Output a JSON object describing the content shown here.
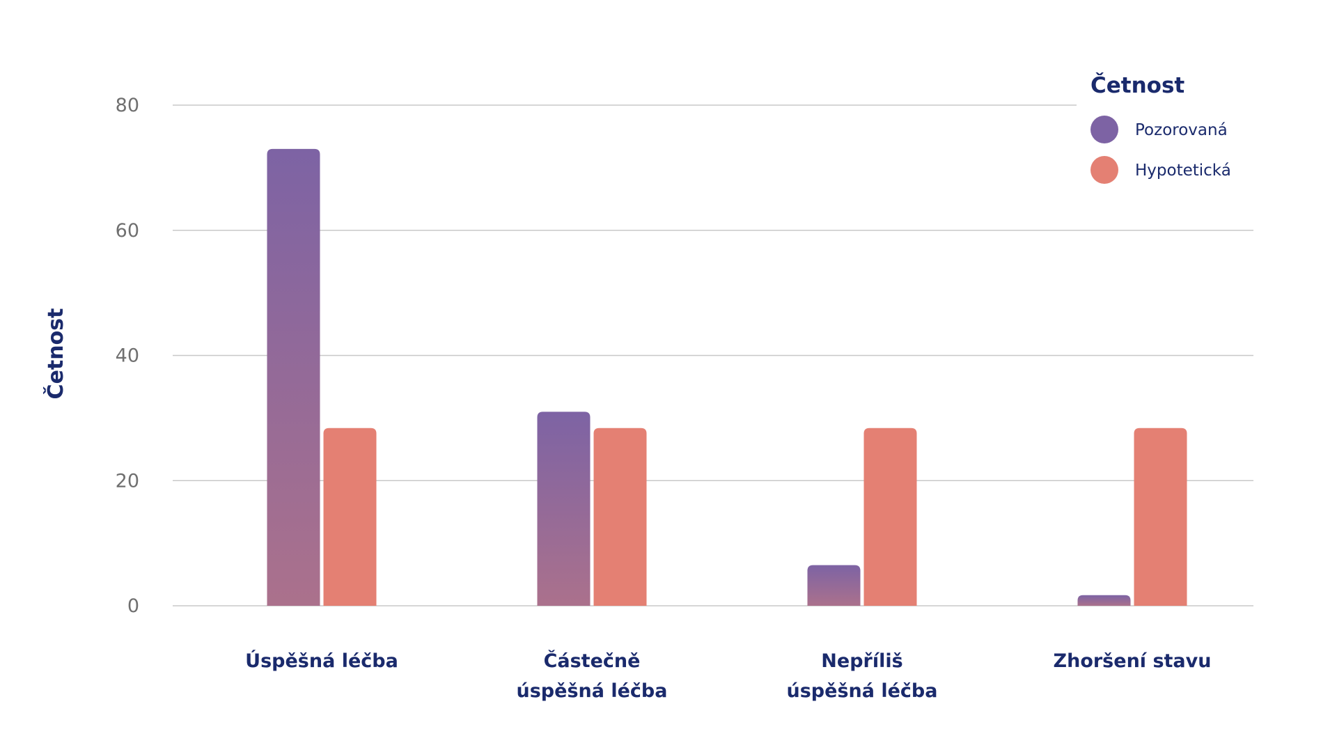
{
  "chart_data": {
    "type": "bar",
    "title": "",
    "xlabel": "",
    "ylabel": "Četnost",
    "ylim": [
      0,
      80
    ],
    "yticks": [
      0,
      20,
      40,
      60,
      80
    ],
    "grid": true,
    "legend_position": "top-right",
    "legend_title": "Četnost",
    "categories": [
      [
        "Úspěšná léčba"
      ],
      [
        "Částečně",
        "úspěšná léčba"
      ],
      [
        "Nepříliš",
        "úspěšná léčba"
      ],
      [
        "Zhoršení stavu"
      ]
    ],
    "series": [
      {
        "name": "Pozorovaná",
        "values": [
          73,
          31,
          6.5,
          1.7
        ],
        "color_top": "#7d63a4",
        "color_bottom": "#ab718c"
      },
      {
        "name": "Hypotetická",
        "values": [
          28.4,
          28.4,
          28.4,
          28.4
        ],
        "color": "#e48073"
      }
    ]
  }
}
